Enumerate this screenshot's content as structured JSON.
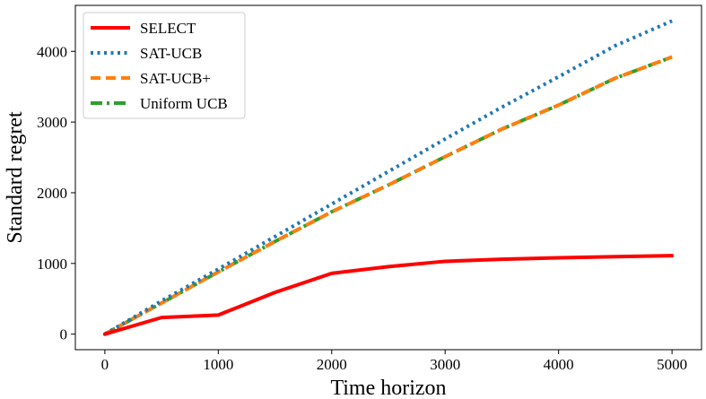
{
  "chart_data": {
    "type": "line",
    "title": "",
    "xlabel": "Time horizon",
    "ylabel": "Standard regret",
    "xlim": [
      -260,
      5260
    ],
    "ylim": [
      -220,
      4650
    ],
    "xticks": [
      0,
      1000,
      2000,
      3000,
      4000,
      5000
    ],
    "xtick_labels": [
      "0",
      "1000",
      "2000",
      "3000",
      "4000",
      "5000"
    ],
    "yticks": [
      0,
      1000,
      2000,
      3000,
      4000
    ],
    "ytick_labels": [
      "0",
      "1000",
      "2000",
      "3000",
      "4000"
    ],
    "grid": false,
    "legend": "top-left",
    "x": [
      0,
      500,
      1000,
      1500,
      2000,
      2500,
      3000,
      3500,
      4000,
      4500,
      5000
    ],
    "series": [
      {
        "name": "SELECT",
        "color": "#ff0000",
        "style": "solid",
        "values": [
          0,
          235,
          270,
          590,
          860,
          955,
          1030,
          1060,
          1080,
          1095,
          1110
        ]
      },
      {
        "name": "SAT-UCB",
        "color": "#1f77b4",
        "style": "dotted",
        "values": [
          0,
          470,
          920,
          1380,
          1840,
          2300,
          2760,
          3210,
          3640,
          4080,
          4430
        ]
      },
      {
        "name": "SAT-UCB+",
        "color": "#ff7f0e",
        "style": "dashed",
        "values": [
          0,
          440,
          880,
          1310,
          1730,
          2110,
          2510,
          2900,
          3240,
          3620,
          3920
        ]
      },
      {
        "name": "Uniform UCB",
        "color": "#2ca02c",
        "style": "dashdot",
        "values": [
          0,
          440,
          880,
          1310,
          1730,
          2110,
          2510,
          2900,
          3240,
          3620,
          3920
        ]
      }
    ]
  }
}
